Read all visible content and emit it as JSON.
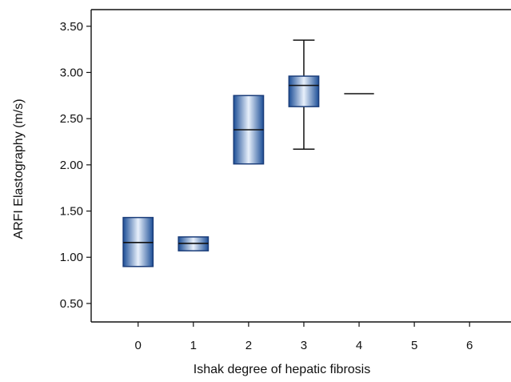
{
  "chart_data": {
    "type": "boxplot",
    "title": "",
    "xlabel": "Ishak degree of hepatic fibrosis",
    "ylabel": "ARFI Elastography (m/s)",
    "categories": [
      "0",
      "1",
      "2",
      "3",
      "4",
      "5",
      "6"
    ],
    "x_ticks": [
      0,
      1,
      2,
      3,
      4,
      5,
      6
    ],
    "y_ticks": [
      "0.50",
      "1.00",
      "1.50",
      "2.00",
      "2.50",
      "3.00",
      "3.50"
    ],
    "xlim": [
      -0.85,
      6.75
    ],
    "ylim": [
      0.3,
      3.68
    ],
    "grid": false,
    "legend": "none",
    "colors": {
      "box_edge": "#1b3d7a",
      "box_fill_dark": "#1d4f97",
      "box_fill_light": "#e8f0fb",
      "line": "#111111"
    },
    "boxes": [
      {
        "category": "0",
        "q1": 0.9,
        "median": 1.16,
        "q3": 1.43,
        "whisker_low": null,
        "whisker_high": null
      },
      {
        "category": "1",
        "q1": 1.07,
        "median": 1.15,
        "q3": 1.22,
        "whisker_low": null,
        "whisker_high": null
      },
      {
        "category": "2",
        "q1": 2.01,
        "median": 2.38,
        "q3": 2.75,
        "whisker_low": null,
        "whisker_high": null
      },
      {
        "category": "3",
        "q1": 2.63,
        "median": 2.86,
        "q3": 2.96,
        "whisker_low": 2.17,
        "whisker_high": 3.35
      },
      {
        "category": "4",
        "q1": 2.77,
        "median": 2.77,
        "q3": 2.77,
        "whisker_low": null,
        "whisker_high": null
      }
    ]
  }
}
